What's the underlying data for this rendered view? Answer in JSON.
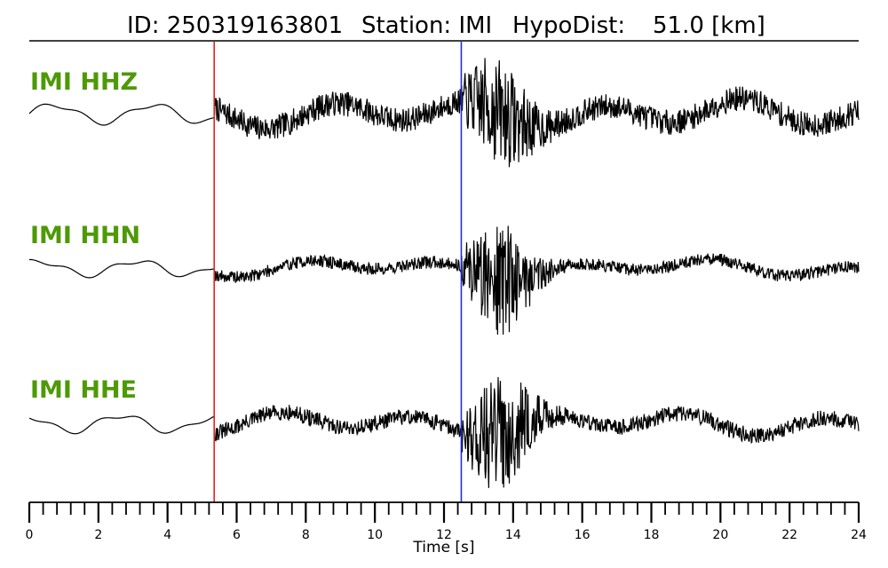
{
  "header": {
    "id_text": "ID: 250319163801",
    "station_text": "Station: IMI",
    "hypodist_label": "HypoDist:",
    "hypodist_value": "51.0 [km]"
  },
  "chart_data": {
    "type": "line",
    "xlabel": "Time [s]",
    "xlim": [
      0,
      24
    ],
    "major_ticks": [
      0,
      2,
      4,
      6,
      8,
      10,
      12,
      14,
      16,
      18,
      20,
      22,
      24
    ],
    "minor_tick_step": 0.4,
    "grid": false,
    "picks": [
      {
        "phase": "P",
        "time": 5.35,
        "color": "#e8211c"
      },
      {
        "phase": "S",
        "time": 12.5,
        "color": "#1f2fd6"
      }
    ],
    "series": [
      {
        "name": "IMI HHZ",
        "color": "#000000",
        "label_color": "#4e9a06"
      },
      {
        "name": "IMI HHN",
        "color": "#000000",
        "label_color": "#4e9a06"
      },
      {
        "name": "IMI HHE",
        "color": "#000000",
        "label_color": "#4e9a06"
      }
    ]
  }
}
